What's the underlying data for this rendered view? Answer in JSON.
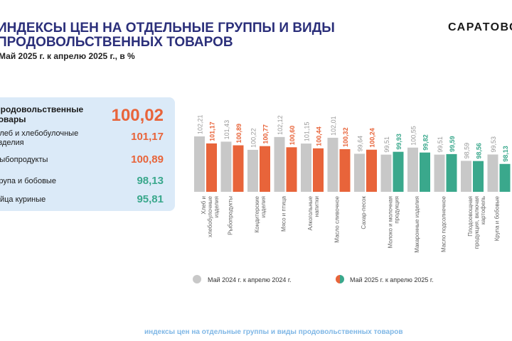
{
  "header": {
    "title": "ИНДЕКСЫ ЦЕН НА ОТДЕЛЬНЫЕ ГРУППЫ И ВИДЫ ПРОДОВОЛЬСТВЕННЫХ ТОВАРОВ",
    "subtitle": "Май 2025 г. к апрелю 2025 г., в %",
    "brand": "САРАТОВС"
  },
  "summary": [
    {
      "label": "Продовольственные товары",
      "value": "100,02",
      "color": "#e8643a",
      "big": true
    },
    {
      "label": "Хлеб и хлебобулочные изделия",
      "value": "101,17",
      "color": "#e8643a"
    },
    {
      "label": "Рыбопродукты",
      "value": "100,89",
      "color": "#e8643a"
    },
    {
      "label": "Крупа и бобовые",
      "value": "98,13",
      "color": "#3aa88c"
    },
    {
      "label": "Яйца куриные",
      "value": "95,81",
      "color": "#3aa88c"
    }
  ],
  "chart_data": {
    "type": "bar",
    "categories": [
      "Хлеб и хлебобулочные изделия",
      "Рыбопродукты",
      "Кондитерские изделия",
      "Мясо и птица",
      "Алкогольные напитки",
      "Масло сливочное",
      "Сахар-песок",
      "Молоко и молочная продукция",
      "Макаронные изделия",
      "Масло подсолнечное",
      "Плодоовощная продукция, включая картофель",
      "Крупа и бобовые"
    ],
    "series": [
      {
        "name": "Май 2024 г. к апрелю 2024 г.",
        "values": [
          102.21,
          101.43,
          100.22,
          102.12,
          101.15,
          102.01,
          99.64,
          99.51,
          100.55,
          99.51,
          98.59,
          99.53
        ],
        "labels": [
          "102,21",
          "101,43",
          "100,22",
          "102,12",
          "101,15",
          "102,01",
          "99,64",
          "99,51",
          "100,55",
          "99,51",
          "98,59",
          "99,53"
        ],
        "color": "#c8c8c8"
      },
      {
        "name": "Май 2025 г. к апрелю 2025 г.",
        "values": [
          101.17,
          100.89,
          100.77,
          100.6,
          100.44,
          100.32,
          100.24,
          99.93,
          99.82,
          99.59,
          98.56,
          98.13
        ],
        "labels": [
          "101,17",
          "100,89",
          "100,77",
          "100,60",
          "100,44",
          "100,32",
          "100,24",
          "99,93",
          "99,82",
          "99,59",
          "98,56",
          "98,13"
        ],
        "colors": [
          "#e8643a",
          "#e8643a",
          "#e8643a",
          "#e8643a",
          "#e8643a",
          "#e8643a",
          "#e8643a",
          "#3aa88c",
          "#3aa88c",
          "#3aa88c",
          "#3aa88c",
          "#3aa88c"
        ]
      }
    ],
    "legend_position": "bottom"
  },
  "footer": "индексы цен на отдельные группы и виды продовольственных товаров"
}
